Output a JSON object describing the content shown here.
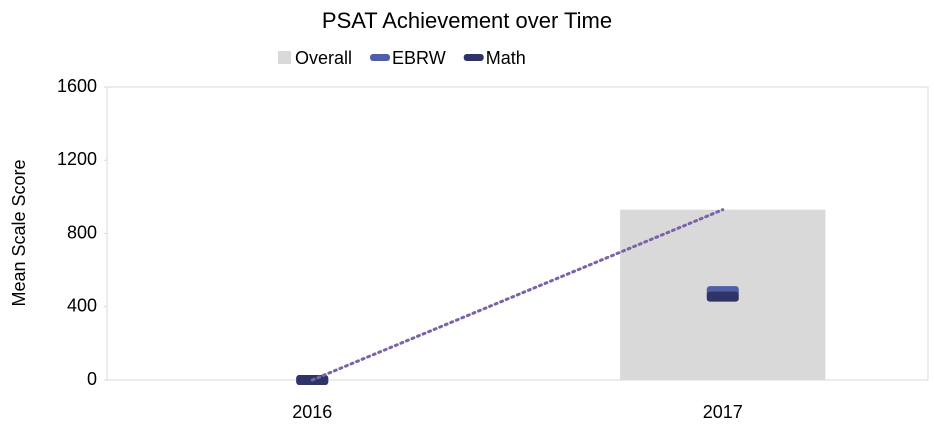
{
  "chart_data": {
    "type": "bar",
    "title": "PSAT Achievement over Time",
    "y_label": "Mean Scale Score",
    "categories": [
      "2016",
      "2017"
    ],
    "series": [
      {
        "name": "Overall",
        "color": "#d9d9d9",
        "kind": "bar",
        "trendline": true,
        "trendline_color": "#7b63a8",
        "values": [
          0,
          930
        ]
      },
      {
        "name": "EBRW",
        "color": "#4e5fa8",
        "kind": "marker",
        "values": [
          0,
          485
        ]
      },
      {
        "name": "Math",
        "color": "#2e3566",
        "kind": "marker",
        "values": [
          0,
          455
        ]
      }
    ],
    "ylim": [
      0,
      1600
    ],
    "yticks": [
      0,
      400,
      800,
      1200,
      1600
    ],
    "grid": false,
    "legend": "top"
  }
}
